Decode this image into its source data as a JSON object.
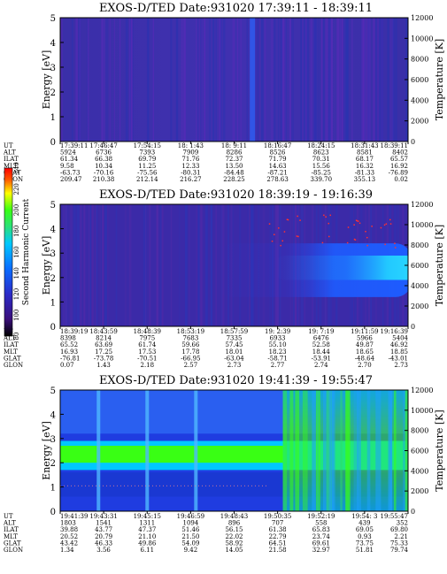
{
  "chart_data": [
    {
      "type": "heatmap",
      "title": "EXOS-D/TED   Date:931020  17:39:11 - 18:39:11",
      "ylabel": "Energy [eV]",
      "y2label": "Temperature [K]",
      "ylim": [
        0,
        5
      ],
      "yticks": [
        "0",
        "1",
        "2",
        "3",
        "4",
        "5"
      ],
      "y2lim": [
        0,
        12000
      ],
      "y2ticks": [
        "0",
        "2000",
        "4000",
        "6000",
        "8000",
        "10000",
        "12000"
      ],
      "ephemeris": {
        "labels": [
          "UT",
          "ALT",
          "ILAT",
          "MLT",
          "GLAT",
          "GLON"
        ],
        "columns": [
          [
            "17:39:11",
            "5924",
            "61.34",
            "9.58",
            "-63.73",
            "209.47"
          ],
          [
            "17:46:47",
            "6736",
            "66.38",
            "10.34",
            "-70.16",
            "210.38"
          ],
          [
            "17:54:15",
            "7393",
            "69.79",
            "11.25",
            "-75.56",
            "212.14"
          ],
          [
            "18: 1:43",
            "7909",
            "71.76",
            "12.33",
            "-80.31",
            "216.27"
          ],
          [
            "18: 9:11",
            "8286",
            "72.37",
            "13.50",
            "-84.48",
            "228.25"
          ],
          [
            "18:16:47",
            "8526",
            "71.79",
            "14.63",
            "-87.21",
            "278.63"
          ],
          [
            "18:24:15",
            "8623",
            "70.31",
            "15.56",
            "-85.25",
            "339.70"
          ],
          [
            "18:31:43",
            "8581",
            "68.17",
            "16.32",
            "-81.33",
            "355.13"
          ],
          [
            "18:39:11",
            "8402",
            "65.57",
            "16.92",
            "-76.89",
            "0.02"
          ]
        ]
      }
    },
    {
      "type": "heatmap",
      "title": "EXOS-D/TED   Date:931020  18:39:19 - 19:16:39",
      "ylabel": "Energy [eV]",
      "y2label": "Temperature [K]",
      "ylim": [
        0,
        5
      ],
      "yticks": [
        "0",
        "1",
        "2",
        "3",
        "4",
        "5"
      ],
      "y2lim": [
        0,
        12000
      ],
      "y2ticks": [
        "0",
        "2000",
        "4000",
        "6000",
        "8000",
        "10000",
        "12000"
      ],
      "ephemeris": {
        "labels": [
          "UT",
          "ALT",
          "ILAT",
          "MLT",
          "GLAT",
          "GLON"
        ],
        "columns": [
          [
            "18:39:19",
            "8398",
            "65.52",
            "16.93",
            "-76.81",
            "0.07"
          ],
          [
            "18:43:59",
            "8214",
            "63.69",
            "17.25",
            "-73.78",
            "1.43"
          ],
          [
            "18:48:39",
            "7975",
            "61.74",
            "17.53",
            "-70.51",
            "2.18"
          ],
          [
            "18:53:19",
            "7683",
            "59.66",
            "17.78",
            "-66.95",
            "2.57"
          ],
          [
            "18:57:59",
            "7335",
            "57.45",
            "18.01",
            "-63.04",
            "2.73"
          ],
          [
            "19: 2:39",
            "6933",
            "55.10",
            "18.23",
            "-58.71",
            "2.77"
          ],
          [
            "19: 7:19",
            "6476",
            "52.58",
            "18.44",
            "-53.91",
            "2.74"
          ],
          [
            "19:11:59",
            "5966",
            "49.87",
            "18.65",
            "-48.64",
            "2.70"
          ],
          [
            "19:16:39",
            "5404",
            "46.92",
            "18.85",
            "-43.01",
            "2.73"
          ]
        ]
      }
    },
    {
      "type": "heatmap",
      "title": "EXOS-D/TED   Date:931020  19:41:39 - 19:55:47",
      "ylabel": "Energy [eV]",
      "y2label": "Temperature [K]",
      "ylim": [
        0,
        5
      ],
      "yticks": [
        "0",
        "1",
        "2",
        "3",
        "4",
        "5"
      ],
      "y2lim": [
        0,
        12000
      ],
      "y2ticks": [
        "0",
        "2000",
        "4000",
        "6000",
        "8000",
        "10000",
        "12000"
      ],
      "ephemeris": {
        "labels": [
          "UT",
          "ALT",
          "ILAT",
          "MLT",
          "GLAT",
          "GLON"
        ],
        "columns": [
          [
            "19:41:39",
            "1803",
            "39.88",
            "20.52",
            "43.42",
            "1.34"
          ],
          [
            "19:43:31",
            "1541",
            "43.77",
            "20.79",
            "46.33",
            "3.56"
          ],
          [
            "19:45:15",
            "1311",
            "47.37",
            "21.10",
            "49.86",
            "6.11"
          ],
          [
            "19:46:59",
            "1094",
            "51.46",
            "21.50",
            "54.09",
            "9.42"
          ],
          [
            "19:48:43",
            "896",
            "56.15",
            "22.02",
            "58.92",
            "14.05"
          ],
          [
            "19:50:35",
            "707",
            "61.38",
            "22.79",
            "64.51",
            "21.58"
          ],
          [
            "19:52:19",
            "558",
            "65.83",
            "23.74",
            "69.61",
            "32.97"
          ],
          [
            "19:54: 3",
            "439",
            "69.05",
            "0.93",
            "73.75",
            "51.81"
          ],
          [
            "19:55:47",
            "352",
            "69.80",
            "2.21",
            "75.33",
            "79.74"
          ]
        ]
      }
    }
  ],
  "colorbar": {
    "label": "Second Harmonic Current",
    "ticks": [
      "80",
      "100",
      "120",
      "140",
      "160",
      "180",
      "200",
      "220",
      "240"
    ],
    "range": [
      80,
      240
    ],
    "colors": [
      "#000000",
      "#3a0f7a",
      "#2b2bc8",
      "#0a6cff",
      "#00c8ff",
      "#2ae07a",
      "#39ff14",
      "#ffff00",
      "#ff5a00",
      "#ff0000"
    ]
  }
}
